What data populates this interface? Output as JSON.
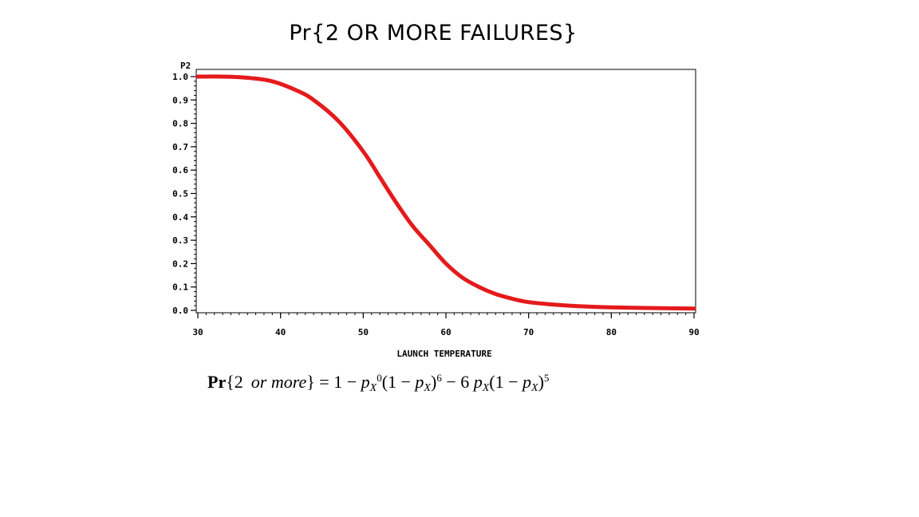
{
  "chart_data": {
    "type": "line",
    "title": "Pr{2 OR MORE FAILURES}",
    "xlabel": "LAUNCH TEMPERATURE",
    "ylabel": "P2",
    "xlim": [
      30,
      90
    ],
    "ylim": [
      0.0,
      1.0
    ],
    "x_ticks": [
      30,
      40,
      50,
      60,
      70,
      80,
      90
    ],
    "y_ticks": [
      "0.0",
      "0.1",
      "0.2",
      "0.3",
      "0.4",
      "0.5",
      "0.6",
      "0.7",
      "0.8",
      "0.9",
      "1.0"
    ],
    "grid": false,
    "series": [
      {
        "color": "#e41a1c",
        "x": [
          30,
          33,
          36,
          39,
          42,
          44,
          47,
          50,
          52,
          54,
          56,
          58,
          60,
          62,
          64,
          66,
          68,
          70,
          73,
          76,
          80,
          85,
          90
        ],
        "y": [
          1.0,
          1.0,
          0.995,
          0.98,
          0.94,
          0.9,
          0.81,
          0.68,
          0.57,
          0.46,
          0.36,
          0.28,
          0.2,
          0.14,
          0.1,
          0.07,
          0.05,
          0.035,
          0.025,
          0.018,
          0.013,
          0.01,
          0.008
        ]
      }
    ]
  },
  "formula": {
    "lhs_pr": "Pr",
    "lhs_open": "{2",
    "lhs_or": "or",
    "lhs_more": "more",
    "lhs_close": "}",
    "equals_one_minus": "= 1 −",
    "p1": "p",
    "sub1": "X",
    "sup1": "0",
    "paren1": "(1 −",
    "p2": "p",
    "sub2": "X",
    "close1": ")",
    "sup2": "6",
    "minus_six": "− 6",
    "p3": "p",
    "sub3": "X",
    "paren2": "(1 −",
    "p4": "p",
    "sub4": "X",
    "close2": ")",
    "sup3": "5"
  }
}
